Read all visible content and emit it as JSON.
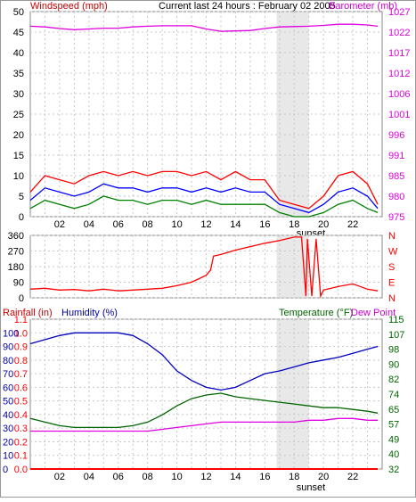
{
  "header": {
    "wind_label": "Windspeed (mph)",
    "title": "Current last 24 hours : February 02 2005",
    "baro_label": "Barometer (mb)"
  },
  "bottom_header": {
    "rain_label": "Rainfall (in)",
    "humidity_label": "Humidity (%)",
    "temperature_label": "Temperature (°F)",
    "dewpoint_label": "Dew Point"
  },
  "colors": {
    "wind_gust": "#ff0000",
    "wind_avg": "#0000ff",
    "wind_low": "#008000",
    "barometer": "#e000e0",
    "direction": "#ff0000",
    "humidity": "#0000c0",
    "temperature": "#006600",
    "dewpoint": "#e000e0",
    "rain": "#ff0000",
    "grid": "#c8c8c8",
    "sunset_band": "#d8d8d8"
  },
  "chart_data": [
    {
      "type": "line",
      "name": "wind-barometer",
      "x_ticks": [
        "02",
        "04",
        "06",
        "08",
        "10",
        "12",
        "14",
        "16",
        "18",
        "20",
        "22"
      ],
      "x_range": [
        0,
        24
      ],
      "annotation": "sunset",
      "annotation_range_hours": [
        16.8,
        19.0
      ],
      "left_axis": {
        "title": "Windspeed (mph)",
        "ticks": [
          0,
          5,
          10,
          15,
          20,
          25,
          30,
          35,
          40,
          45,
          50
        ],
        "ylim": [
          0,
          50
        ]
      },
      "right_axis": {
        "title": "Barometer (mb)",
        "ticks": [
          975,
          980,
          985,
          991,
          996,
          1001,
          1006,
          1012,
          1017,
          1022,
          1027
        ],
        "ylim": [
          975,
          1027
        ]
      },
      "grid": true,
      "series": [
        {
          "axis": "left",
          "role": "gust",
          "x": [
            0,
            1,
            2,
            3,
            4,
            5,
            6,
            7,
            8,
            9,
            10,
            11,
            12,
            13,
            14,
            15,
            16,
            17,
            18,
            19,
            20,
            21,
            22,
            23,
            23.7
          ],
          "y": [
            6,
            10,
            9,
            8,
            10,
            11,
            10,
            11,
            10,
            11,
            11,
            10,
            11,
            9,
            11,
            9,
            9,
            4,
            3,
            2,
            5,
            10,
            11,
            8,
            3
          ]
        },
        {
          "axis": "left",
          "role": "average",
          "x": [
            0,
            1,
            2,
            3,
            4,
            5,
            6,
            7,
            8,
            9,
            10,
            11,
            12,
            13,
            14,
            15,
            16,
            17,
            18,
            19,
            20,
            21,
            22,
            23,
            23.7
          ],
          "y": [
            4,
            7,
            6,
            5,
            6,
            8,
            7,
            7,
            6,
            7,
            7,
            6,
            7,
            6,
            7,
            6,
            6,
            3,
            2,
            1,
            3,
            6,
            7,
            5,
            2
          ]
        },
        {
          "axis": "left",
          "role": "low",
          "x": [
            0,
            1,
            2,
            3,
            4,
            5,
            6,
            7,
            8,
            9,
            10,
            11,
            12,
            13,
            14,
            15,
            16,
            17,
            18,
            19,
            20,
            21,
            22,
            23,
            23.7
          ],
          "y": [
            2,
            4,
            3,
            2,
            3,
            5,
            4,
            4,
            3,
            4,
            4,
            3,
            4,
            3,
            3,
            3,
            3,
            1,
            0,
            0,
            1,
            3,
            4,
            2,
            1
          ]
        },
        {
          "axis": "right",
          "role": "barometer",
          "x": [
            0,
            1,
            2,
            3,
            4,
            5,
            6,
            7,
            8,
            9,
            10,
            11,
            12,
            13,
            14,
            15,
            16,
            17,
            18,
            19,
            20,
            21,
            22,
            23,
            23.7
          ],
          "y": [
            1023.3,
            1023.1,
            1022.7,
            1022.4,
            1022.6,
            1022.8,
            1022.8,
            1023.1,
            1023.3,
            1023.4,
            1023.4,
            1023.4,
            1022.6,
            1022.0,
            1022.1,
            1022.2,
            1022.7,
            1023.1,
            1023.2,
            1023.3,
            1023.5,
            1023.8,
            1023.8,
            1023.6,
            1023.3
          ]
        }
      ]
    },
    {
      "type": "line",
      "name": "wind-direction",
      "x_range": [
        0,
        24
      ],
      "left_axis": {
        "ticks": [
          0,
          90,
          180,
          270,
          360
        ],
        "ylim": [
          0,
          360
        ]
      },
      "right_axis": {
        "ticks": [
          "N",
          "W",
          "S",
          "E",
          "N"
        ]
      },
      "series": [
        {
          "role": "direction",
          "x": [
            0,
            1,
            2,
            3,
            4,
            5,
            6,
            7,
            8,
            9,
            10,
            11,
            11.5,
            12,
            12.3,
            12.5,
            13,
            14,
            15,
            16,
            17,
            18,
            18.5,
            18.8,
            18.9,
            19.2,
            19.5,
            19.8,
            20,
            21,
            22,
            23,
            23.7
          ],
          "y": [
            50,
            55,
            45,
            48,
            40,
            50,
            40,
            45,
            50,
            55,
            70,
            90,
            110,
            130,
            160,
            240,
            250,
            275,
            295,
            315,
            330,
            350,
            350,
            10,
            340,
            10,
            340,
            10,
            45,
            65,
            80,
            50,
            40
          ]
        }
      ]
    },
    {
      "type": "line",
      "name": "humidity-temperature",
      "x_ticks": [
        "02",
        "04",
        "06",
        "08",
        "10",
        "12",
        "14",
        "16",
        "18",
        "20",
        "22"
      ],
      "x_range": [
        0,
        24
      ],
      "annotation": "sunset",
      "rain_axis": {
        "title": "Rainfall (in)",
        "ticks": [
          0.0,
          0.1,
          0.2,
          0.3,
          0.4,
          0.5,
          0.6,
          0.7,
          0.8,
          0.9,
          1.0,
          1.1
        ],
        "ylim": [
          0,
          1.1
        ]
      },
      "humidity_axis": {
        "title": "Humidity (%)",
        "ticks": [
          0,
          10,
          20,
          30,
          40,
          50,
          60,
          70,
          80,
          90,
          100
        ],
        "ylim": [
          0,
          110
        ]
      },
      "right_axis": {
        "title": "Temperature (°F)",
        "ticks": [
          32,
          40,
          49,
          57,
          65,
          74,
          82,
          90,
          98,
          107,
          115
        ],
        "ylim": [
          32,
          115
        ]
      },
      "series": [
        {
          "axis": "humidity",
          "role": "humidity",
          "x": [
            0,
            1,
            2,
            3,
            4,
            5,
            6,
            7,
            8,
            9,
            10,
            11,
            12,
            13,
            14,
            15,
            16,
            17,
            18,
            19,
            20,
            21,
            22,
            23,
            23.7
          ],
          "y": [
            92,
            95,
            98,
            100,
            100,
            100,
            100,
            98,
            92,
            84,
            72,
            65,
            60,
            58,
            60,
            65,
            70,
            72,
            75,
            78,
            80,
            82,
            85,
            88,
            90
          ]
        },
        {
          "axis": "right",
          "role": "temperature",
          "x": [
            0,
            1,
            2,
            3,
            4,
            5,
            6,
            7,
            8,
            9,
            10,
            11,
            12,
            13,
            14,
            15,
            16,
            17,
            18,
            19,
            20,
            21,
            22,
            23,
            23.7
          ],
          "y": [
            60,
            58,
            56,
            55,
            55,
            55,
            55,
            56,
            58,
            62,
            67,
            71,
            73,
            74,
            72,
            71,
            70,
            69,
            68,
            67,
            66,
            66,
            65,
            64,
            63
          ]
        },
        {
          "axis": "right",
          "role": "dew-point",
          "x": [
            0,
            1,
            2,
            3,
            4,
            5,
            6,
            7,
            8,
            9,
            10,
            11,
            12,
            13,
            14,
            15,
            16,
            17,
            18,
            19,
            20,
            21,
            22,
            23,
            23.7
          ],
          "y": [
            53,
            53,
            53,
            53,
            53,
            53,
            53,
            53,
            53,
            54,
            55,
            56,
            57,
            58,
            58,
            58,
            58,
            58,
            58,
            59,
            59,
            60,
            60,
            59,
            59
          ]
        },
        {
          "axis": "rain",
          "role": "rainfall",
          "x": [
            0,
            23.7
          ],
          "y": [
            0,
            0
          ]
        }
      ]
    }
  ]
}
